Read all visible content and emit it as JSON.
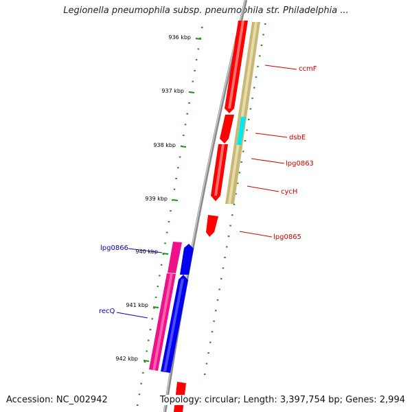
{
  "title": "Legionella pneumophila subsp. pneumophila str. Philadelphia ...",
  "accession": "Accession: NC_002942",
  "topology": "Topology: circular; Length: 3,397,754 bp; Genes: 2,994",
  "scale_labels": [
    "936 kbp",
    "937 kbp",
    "938 kbp",
    "939 kbp",
    "940 kbp",
    "941 kbp",
    "942 kbp"
  ],
  "gene_labels": [
    {
      "name": "ccmF",
      "color": "#cc0000"
    },
    {
      "name": "dsbE",
      "color": "#cc0000"
    },
    {
      "name": "lpg0863",
      "color": "#cc0000"
    },
    {
      "name": "cycH",
      "color": "#cc0000"
    },
    {
      "name": "lpg0865",
      "color": "#cc0000"
    },
    {
      "name": "lpg0866",
      "color": "#0000cc"
    },
    {
      "name": "recQ",
      "color": "#0000cc"
    }
  ],
  "colors": {
    "forward_strand": "#ff0000",
    "reverse_strand": "#0000ee",
    "reverse_rna": "#ee1188",
    "gc_track": "#c8b878",
    "highlight": "#00e8f0",
    "backbone": "#909090",
    "ticks": "#228b22"
  }
}
